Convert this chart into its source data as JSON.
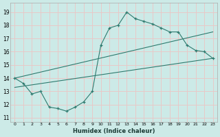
{
  "xlabel": "Humidex (Indice chaleur)",
  "bg_color": "#cceae7",
  "grid_color": "#e8c8c8",
  "line_color": "#2d7a6e",
  "xlim": [
    -0.5,
    23.5
  ],
  "ylim": [
    10.7,
    19.7
  ],
  "yticks": [
    11,
    12,
    13,
    14,
    15,
    16,
    17,
    18,
    19
  ],
  "xticks": [
    0,
    1,
    2,
    3,
    4,
    5,
    6,
    7,
    8,
    9,
    10,
    11,
    12,
    13,
    14,
    15,
    16,
    17,
    18,
    19,
    20,
    21,
    22,
    23
  ],
  "curve1_x": [
    0,
    1,
    2,
    3,
    4,
    5,
    6,
    7,
    8,
    9,
    10,
    11,
    12,
    13,
    14,
    15,
    16,
    17,
    18,
    19,
    20,
    21,
    22,
    23
  ],
  "curve1_y": [
    14.0,
    13.6,
    12.8,
    13.0,
    11.8,
    11.7,
    11.5,
    11.8,
    12.2,
    13.0,
    16.5,
    17.8,
    18.0,
    19.0,
    18.5,
    18.3,
    18.1,
    17.8,
    17.5,
    17.5,
    16.5,
    16.1,
    16.0,
    15.5
  ],
  "line2_x": [
    0,
    23
  ],
  "line2_y": [
    13.3,
    15.5
  ],
  "line3_x": [
    0,
    23
  ],
  "line3_y": [
    14.0,
    17.5
  ]
}
